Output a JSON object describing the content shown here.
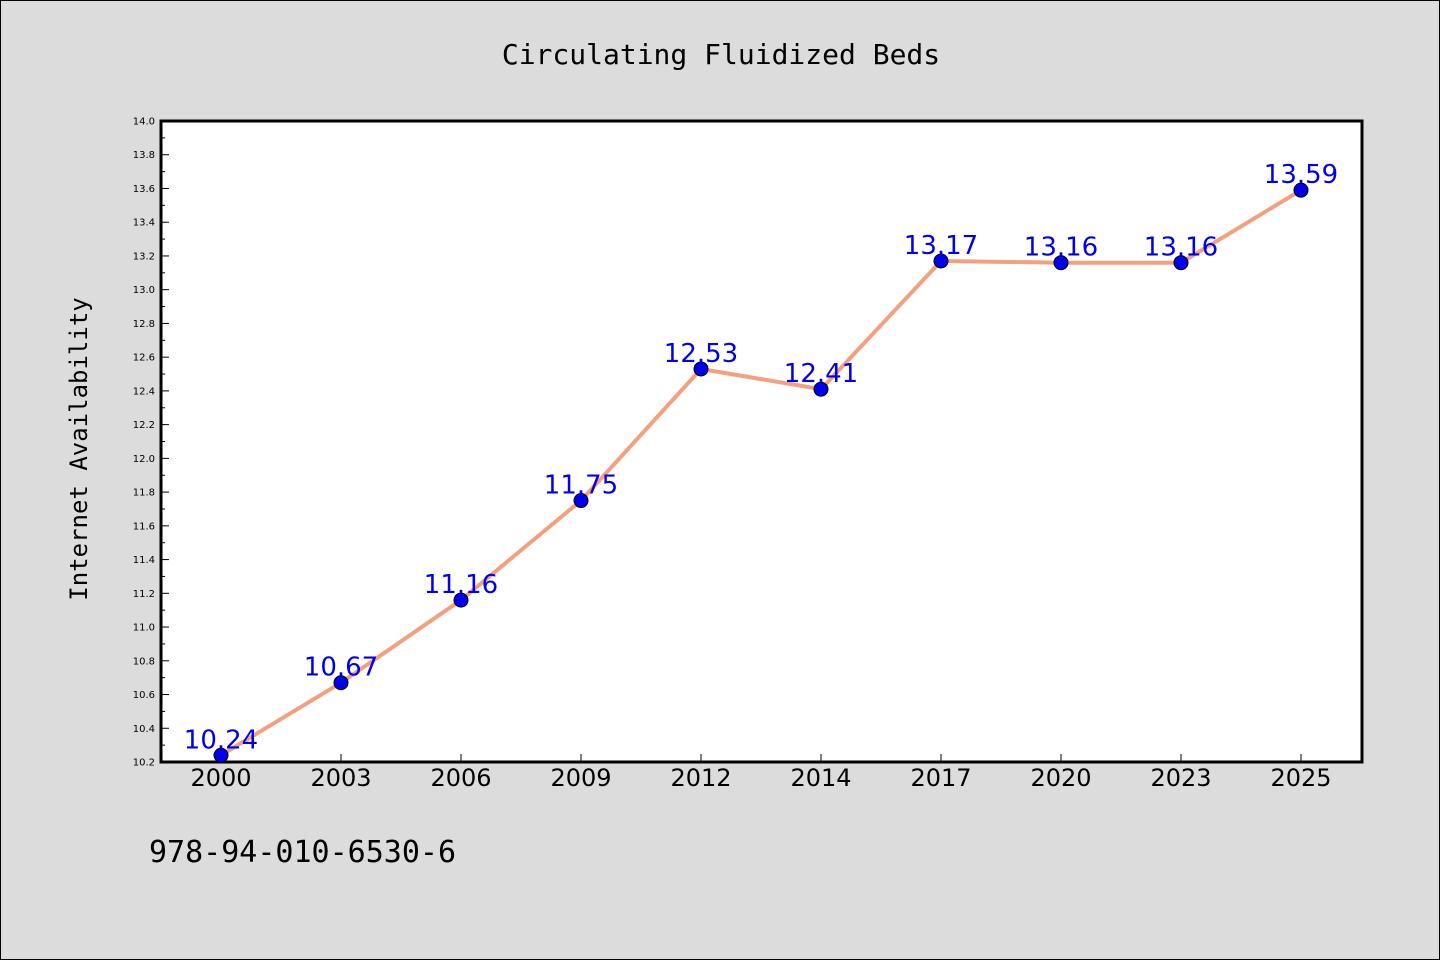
{
  "chart_data": {
    "type": "line",
    "title": "Circulating Fluidized Beds",
    "xlabel": "",
    "ylabel": "Internet Availability",
    "categories": [
      "2000",
      "2003",
      "2006",
      "2009",
      "2012",
      "2014",
      "2017",
      "2020",
      "2023",
      "2025"
    ],
    "series": [
      {
        "values": [
          10.24,
          10.67,
          11.16,
          11.75,
          12.53,
          12.41,
          13.17,
          13.16,
          13.16,
          13.59
        ],
        "labels": [
          "10.24",
          "10.67",
          "11.16",
          "11.75",
          "12.53",
          "12.41",
          "13.17",
          "13.16",
          "13.16",
          "13.59"
        ],
        "line_color": "#f4a07f",
        "marker_color": "#0000ee",
        "label_color": "#0000ee"
      }
    ],
    "ylim": [
      10.2,
      14.0
    ],
    "yticks": [
      "10.2",
      "10.4",
      "10.6",
      "10.8",
      "11.0",
      "11.2",
      "11.4",
      "11.6",
      "11.8",
      "12.0",
      "12.2",
      "12.4",
      "12.6",
      "12.8",
      "13.0",
      "13.2",
      "13.4",
      "13.6",
      "13.8",
      "14.0"
    ],
    "grid": false,
    "legend": "none"
  },
  "footer": {
    "isbn": "978-94-010-6530-6"
  }
}
